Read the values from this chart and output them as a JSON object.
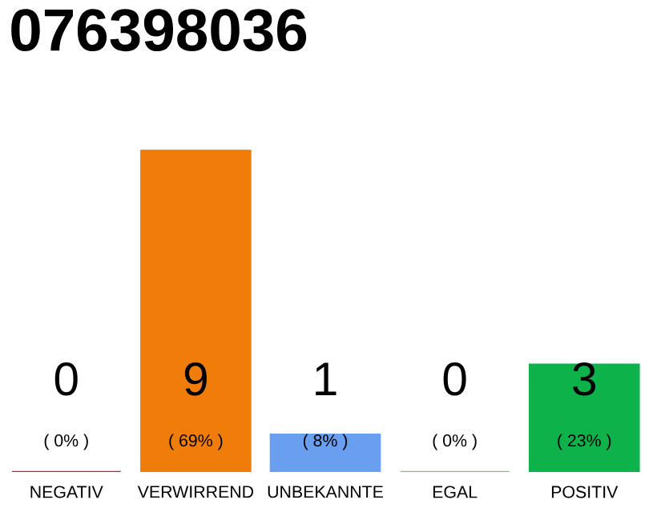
{
  "chart_data": {
    "type": "bar",
    "title": "076398036",
    "categories": [
      "NEGATIV",
      "VERWIRREND",
      "UNBEKANNTE",
      "EGAL",
      "POSITIV"
    ],
    "values": [
      0,
      69,
      8,
      0,
      23
    ],
    "colors": [
      "#e8112d",
      "#f07d0a",
      "#6a9ff0",
      "#7dc36b",
      "#0db34a"
    ],
    "value_labels": [
      "( 0% )",
      "( 69% )",
      "( 8% )",
      "( 0% )",
      "( 23% )"
    ],
    "annotations": [
      "0",
      "9",
      "1",
      "0",
      "3"
    ],
    "tick_labels": "x"
  }
}
